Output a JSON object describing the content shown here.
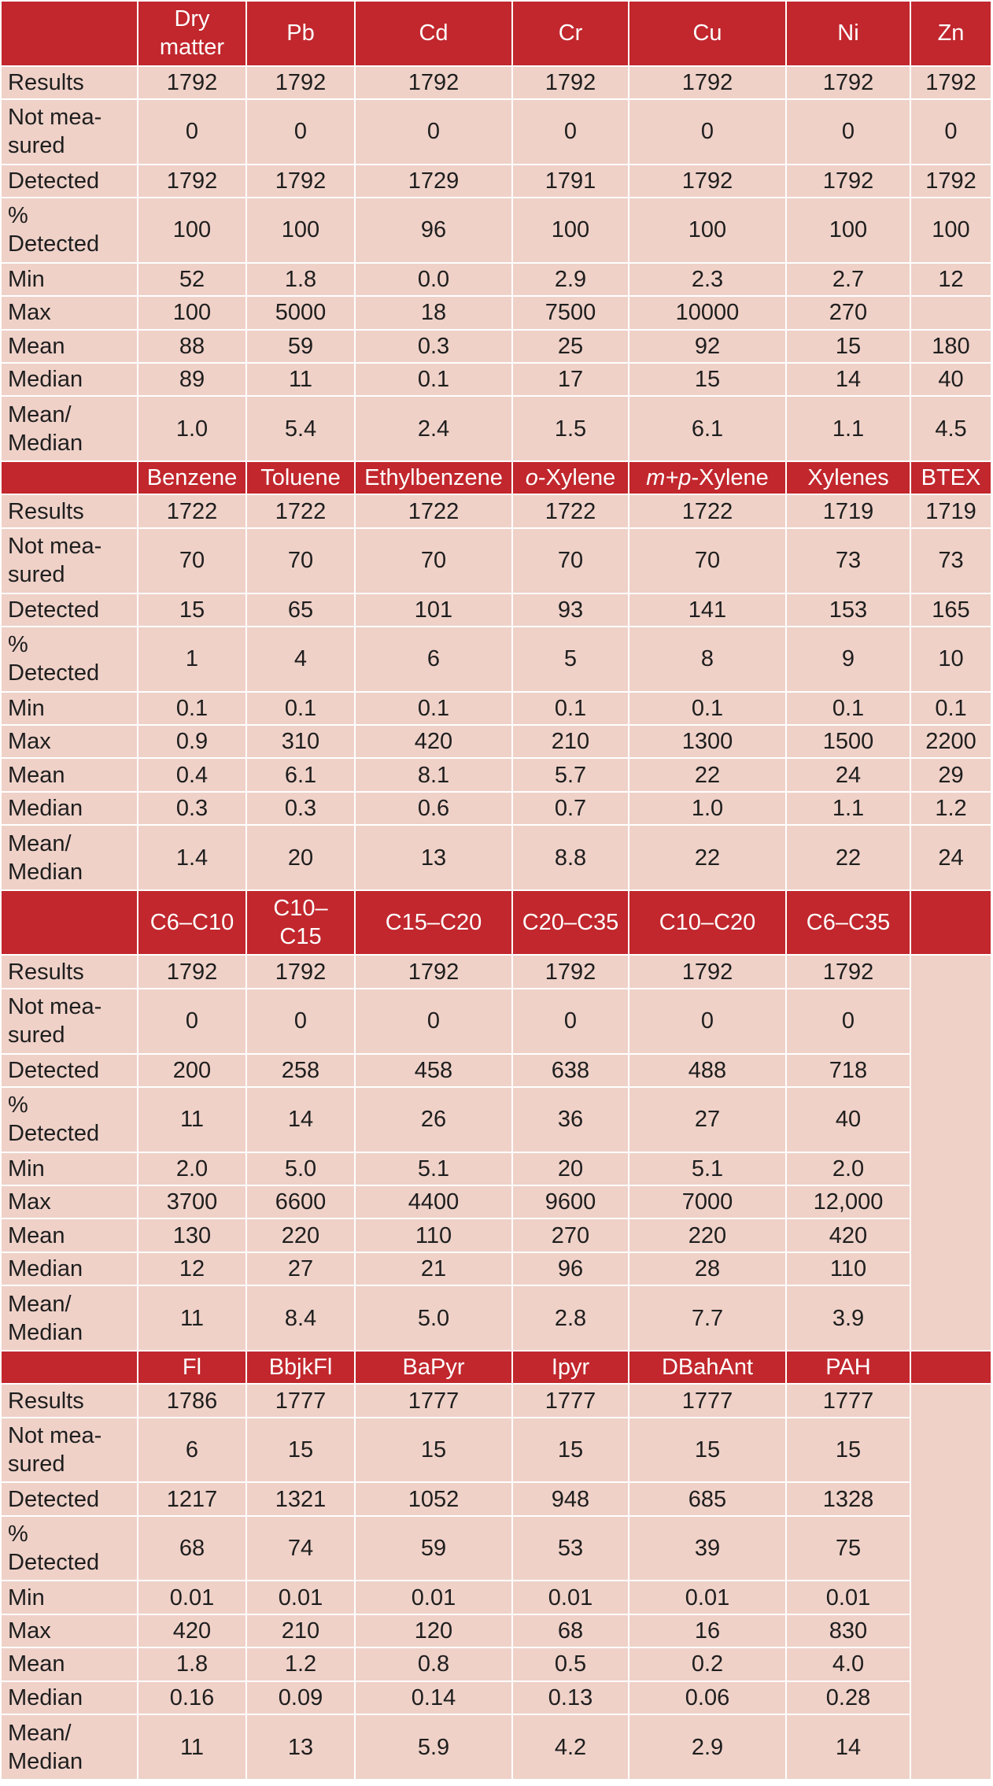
{
  "blocks": [
    {
      "headers": [
        "Dry matter",
        "Pb",
        "Cd",
        "Cr",
        "Cu",
        "Ni",
        "Zn"
      ],
      "rows": [
        {
          "label": "Results",
          "values": [
            "1792",
            "1792",
            "1792",
            "1792",
            "1792",
            "1792",
            "1792"
          ]
        },
        {
          "label": "Not mea-\nsured",
          "values": [
            "0",
            "0",
            "0",
            "0",
            "0",
            "0",
            "0"
          ]
        },
        {
          "label": "Detected",
          "values": [
            "1792",
            "1792",
            "1729",
            "1791",
            "1792",
            "1792",
            "1792"
          ]
        },
        {
          "label": "%\nDetected",
          "values": [
            "100",
            "100",
            "96",
            "100",
            "100",
            "100",
            "100"
          ]
        },
        {
          "label": "Min",
          "values": [
            "52",
            "1.8",
            "0.0",
            "2.9",
            "2.3",
            "2.7",
            "12"
          ]
        },
        {
          "label": "Max",
          "values": [
            "100",
            "5000",
            "18",
            "7500",
            "10000",
            "270",
            ""
          ]
        },
        {
          "label": "Mean",
          "values": [
            "88",
            "59",
            "0.3",
            "25",
            "92",
            "15",
            "180"
          ]
        },
        {
          "label": "Median",
          "values": [
            "89",
            "11",
            "0.1",
            "17",
            "15",
            "14",
            "40"
          ]
        },
        {
          "label": "Mean/\nMedian",
          "values": [
            "1.0",
            "5.4",
            "2.4",
            "1.5",
            "6.1",
            "1.1",
            "4.5"
          ]
        }
      ]
    },
    {
      "headers": [
        "Benzene",
        "Toluene",
        "Ethylbenzene",
        "o-Xylene",
        "m+p-Xylene",
        "Xylenes",
        "BTEX"
      ],
      "rows": [
        {
          "label": "Results",
          "values": [
            "1722",
            "1722",
            "1722",
            "1722",
            "1722",
            "1719",
            "1719"
          ]
        },
        {
          "label": "Not mea-\nsured",
          "values": [
            "70",
            "70",
            "70",
            "70",
            "70",
            "73",
            "73"
          ]
        },
        {
          "label": "Detected",
          "values": [
            "15",
            "65",
            "101",
            "93",
            "141",
            "153",
            "165"
          ]
        },
        {
          "label": "%\nDetected",
          "values": [
            "1",
            "4",
            "6",
            "5",
            "8",
            "9",
            "10"
          ]
        },
        {
          "label": "Min",
          "values": [
            "0.1",
            "0.1",
            "0.1",
            "0.1",
            "0.1",
            "0.1",
            "0.1"
          ]
        },
        {
          "label": "Max",
          "values": [
            "0.9",
            "310",
            "420",
            "210",
            "1300",
            "1500",
            "2200"
          ]
        },
        {
          "label": "Mean",
          "values": [
            "0.4",
            "6.1",
            "8.1",
            "5.7",
            "22",
            "24",
            "29"
          ]
        },
        {
          "label": "Median",
          "values": [
            "0.3",
            "0.3",
            "0.6",
            "0.7",
            "1.0",
            "1.1",
            "1.2"
          ]
        },
        {
          "label": "Mean/\nMedian",
          "values": [
            "1.4",
            "20",
            "13",
            "8.8",
            "22",
            "22",
            "24"
          ]
        }
      ]
    },
    {
      "headers": [
        "C6–C10",
        "C10–\nC15",
        "C15–C20",
        "C20–C35",
        "C10–C20",
        "C6–C35"
      ],
      "rows": [
        {
          "label": "Results",
          "values": [
            "1792",
            "1792",
            "1792",
            "1792",
            "1792",
            "1792"
          ]
        },
        {
          "label": "Not mea-\nsured",
          "values": [
            "0",
            "0",
            "0",
            "0",
            "0",
            "0"
          ]
        },
        {
          "label": "Detected",
          "values": [
            "200",
            "258",
            "458",
            "638",
            "488",
            "718"
          ]
        },
        {
          "label": "%\nDetected",
          "values": [
            "11",
            "14",
            "26",
            "36",
            "27",
            "40"
          ]
        },
        {
          "label": "Min",
          "values": [
            "2.0",
            "5.0",
            "5.1",
            "20",
            "5.1",
            "2.0"
          ]
        },
        {
          "label": "Max",
          "values": [
            "3700",
            "6600",
            "4400",
            "9600",
            "7000",
            "12,000"
          ]
        },
        {
          "label": "Mean",
          "values": [
            "130",
            "220",
            "110",
            "270",
            "220",
            "420"
          ]
        },
        {
          "label": "Median",
          "values": [
            "12",
            "27",
            "21",
            "96",
            "28",
            "110"
          ]
        },
        {
          "label": "Mean/\nMedian",
          "values": [
            "11",
            "8.4",
            "5.0",
            "2.8",
            "7.7",
            "3.9"
          ]
        }
      ]
    },
    {
      "headers": [
        "Fl",
        "BbjkFl",
        "BaPyr",
        "Ipyr",
        "DBahAnt",
        "PAH"
      ],
      "rows": [
        {
          "label": "Results",
          "values": [
            "1786",
            "1777",
            "1777",
            "1777",
            "1777",
            "1777"
          ]
        },
        {
          "label": "Not mea-\nsured",
          "values": [
            "6",
            "15",
            "15",
            "15",
            "15",
            "15"
          ]
        },
        {
          "label": "Detected",
          "values": [
            "1217",
            "1321",
            "1052",
            "948",
            "685",
            "1328"
          ]
        },
        {
          "label": "%\nDetected",
          "values": [
            "68",
            "74",
            "59",
            "53",
            "39",
            "75"
          ]
        },
        {
          "label": "Min",
          "values": [
            "0.01",
            "0.01",
            "0.01",
            "0.01",
            "0.01",
            "0.01"
          ]
        },
        {
          "label": "Max",
          "values": [
            "420",
            "210",
            "120",
            "68",
            "16",
            "830"
          ]
        },
        {
          "label": "Mean",
          "values": [
            "1.8",
            "1.2",
            "0.8",
            "0.5",
            "0.2",
            "4.0"
          ]
        },
        {
          "label": "Median",
          "values": [
            "0.16",
            "0.09",
            "0.14",
            "0.13",
            "0.06",
            "0.28"
          ]
        },
        {
          "label": "Mean/\nMedian",
          "values": [
            "11",
            "13",
            "5.9",
            "4.2",
            "2.9",
            "14"
          ]
        }
      ]
    }
  ]
}
